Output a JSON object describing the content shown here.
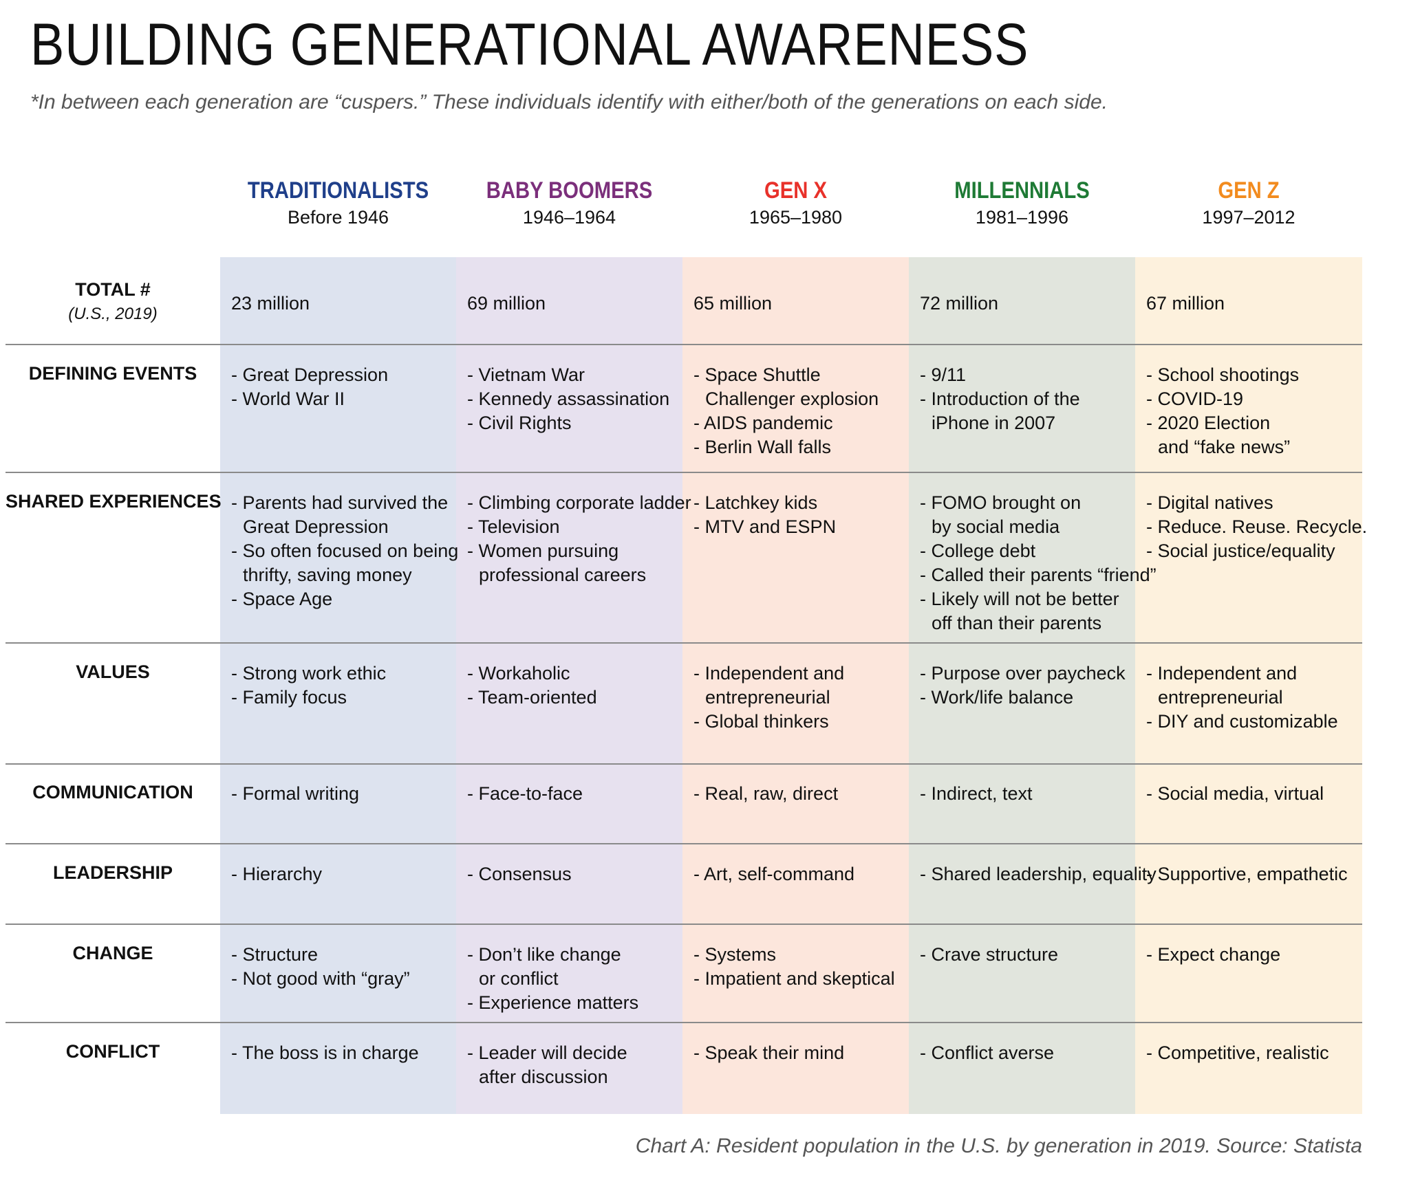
{
  "title": "BUILDING GENERATIONAL AWARENESS",
  "subtitle": "*In between each generation are “cuspers.” These individuals identify with either/both of the generations on each side.",
  "generations": [
    {
      "name": "TRADITIONALISTS",
      "years": "Before 1946",
      "color": "#1f3f8a",
      "band": "#dde3ef"
    },
    {
      "name": "BABY BOOMERS",
      "years": "1946–1964",
      "color": "#7b2f7b",
      "band": "#e7e1ef"
    },
    {
      "name": "GEN X",
      "years": "1965–1980",
      "color": "#e8312a",
      "band": "#fce6dc"
    },
    {
      "name": "MILLENNIALS",
      "years": "1981–1996",
      "color": "#1e7a35",
      "band": "#e1e5dd"
    },
    {
      "name": "GEN Z",
      "years": "1997–2012",
      "color": "#f28b1e",
      "band": "#fdf1dd"
    }
  ],
  "rows": [
    {
      "label": "TOTAL #",
      "sublabel": "(U.S., 2019)",
      "cells": [
        [
          "23 million"
        ],
        [
          "69 million"
        ],
        [
          "65 million"
        ],
        [
          "72 million"
        ],
        [
          "67 million"
        ]
      ]
    },
    {
      "label": "DEFINING EVENTS",
      "cells": [
        [
          "- Great Depression",
          "- World War II"
        ],
        [
          "- Vietnam War",
          "- Kennedy assassination",
          "- Civil Rights"
        ],
        [
          "- Space Shuttle",
          "  Challenger explosion",
          "- AIDS pandemic",
          "- Berlin Wall falls"
        ],
        [
          "- 9/11",
          "- Introduction of the",
          "  iPhone in 2007"
        ],
        [
          "- School shootings",
          "- COVID-19",
          "- 2020 Election",
          "  and “fake news”"
        ]
      ]
    },
    {
      "label": "SHARED EXPERIENCES",
      "cells": [
        [
          "- Parents had survived the",
          "  Great Depression",
          "- So often focused on being",
          "  thrifty, saving money",
          "- Space Age"
        ],
        [
          "- Climbing corporate ladder",
          "- Television",
          "- Women pursuing",
          "  professional careers"
        ],
        [
          "- Latchkey kids",
          "- MTV and ESPN"
        ],
        [
          "- FOMO brought on",
          "  by social media",
          "- College debt",
          "- Called their parents “friend”",
          "- Likely will not be better",
          "  off than their parents"
        ],
        [
          "- Digital natives",
          "- Reduce. Reuse. Recycle.",
          "- Social justice/equality"
        ]
      ]
    },
    {
      "label": "VALUES",
      "cells": [
        [
          "- Strong work ethic",
          "- Family focus"
        ],
        [
          "- Workaholic",
          "- Team-oriented"
        ],
        [
          "- Independent and",
          "  entrepreneurial",
          "- Global thinkers"
        ],
        [
          "- Purpose over paycheck",
          "- Work/life balance"
        ],
        [
          "- Independent and",
          "  entrepreneurial",
          "- DIY and customizable"
        ]
      ]
    },
    {
      "label": "COMMUNICATION",
      "cells": [
        [
          "- Formal writing"
        ],
        [
          "- Face-to-face"
        ],
        [
          "- Real, raw, direct"
        ],
        [
          "- Indirect, text"
        ],
        [
          "- Social media, virtual"
        ]
      ]
    },
    {
      "label": "LEADERSHIP",
      "cells": [
        [
          "- Hierarchy"
        ],
        [
          "- Consensus"
        ],
        [
          "- Art, self-command"
        ],
        [
          "- Shared leadership, equality"
        ],
        [
          "- Supportive, empathetic"
        ]
      ]
    },
    {
      "label": "CHANGE",
      "cells": [
        [
          "- Structure",
          "- Not good with “gray”"
        ],
        [
          "- Don’t like change",
          "  or conflict",
          "- Experience matters"
        ],
        [
          "- Systems",
          "- Impatient and skeptical"
        ],
        [
          "- Crave structure"
        ],
        [
          "- Expect change"
        ]
      ]
    },
    {
      "label": "CONFLICT",
      "cells": [
        [
          "- The boss is in charge"
        ],
        [
          "- Leader will decide",
          "  after discussion"
        ],
        [
          "- Speak their mind"
        ],
        [
          "- Conflict averse"
        ],
        [
          "- Competitive, realistic"
        ]
      ]
    }
  ],
  "caption": "Chart A: Resident population in the U.S. by generation in 2019. Source: Statista"
}
